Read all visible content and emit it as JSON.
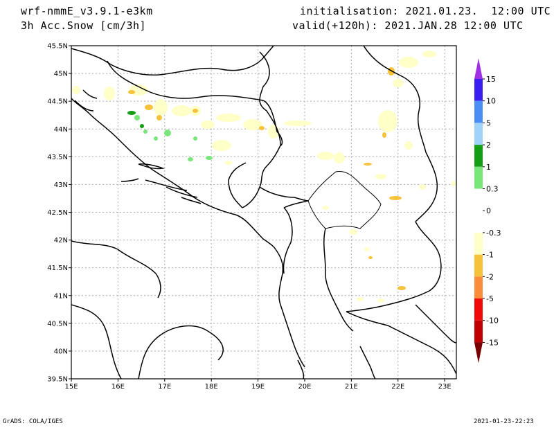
{
  "header": {
    "model": "wrf-nmmE_v3.9.1-e3km",
    "variable": "3h Acc.Snow [cm/3h]",
    "initialisation": "initialisation: 2021.01.23.  12:00 UTC",
    "valid": "valid(+120h): 2021.JAN.28 12:00 UTC"
  },
  "footer": {
    "software": "GrADS: COLA/IGES",
    "timestamp": "2021-01-23-22:23"
  },
  "map": {
    "lat_labels": [
      "45.5N",
      "45N",
      "44.5N",
      "44N",
      "43.5N",
      "43N",
      "42.5N",
      "42N",
      "41.5N",
      "41N",
      "40.5N",
      "40N",
      "39.5N"
    ],
    "lon_labels": [
      "15E",
      "16E",
      "17E",
      "18E",
      "19E",
      "20E",
      "21E",
      "22E",
      "23E"
    ],
    "lat_range": [
      39.5,
      45.5
    ],
    "lon_range": [
      15,
      23.25
    ],
    "grid": true
  },
  "colorbar": {
    "labels": [
      "15",
      "10",
      "5",
      "2",
      "1",
      "0.3",
      "0",
      "-0.3",
      "-1",
      "-2",
      "-5",
      "-10",
      "-15"
    ],
    "colors": [
      "#3a1ff0",
      "#4a8ef5",
      "#a0d2fa",
      "#139e13",
      "#78e678",
      "#ffffff",
      "#ffffff",
      "#ffffc8",
      "#f5c23a",
      "#fa8c3a",
      "#f00a0a",
      "#c00000",
      "#a00000"
    ],
    "top_arrow_color": "#a030e6",
    "bottom_arrow_color": "#780000"
  }
}
